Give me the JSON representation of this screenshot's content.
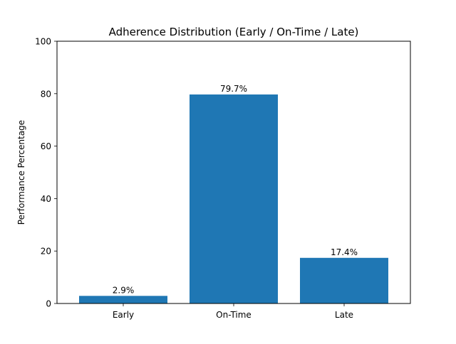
{
  "chart_data": {
    "type": "bar",
    "title": "Adherence Distribution (Early / On-Time / Late)",
    "xlabel": "",
    "ylabel": "Performance Percentage",
    "categories": [
      "Early",
      "On-Time",
      "Late"
    ],
    "values": [
      2.9,
      79.7,
      17.4
    ],
    "data_labels": [
      "2.9%",
      "79.7%",
      "17.4%"
    ],
    "ylim": [
      0,
      100
    ],
    "yticks": [
      0,
      20,
      40,
      60,
      80,
      100
    ],
    "ytick_labels": [
      "0",
      "20",
      "40",
      "60",
      "80",
      "100"
    ],
    "bar_color": "#1f77b4",
    "grid": false,
    "legend": "none"
  }
}
